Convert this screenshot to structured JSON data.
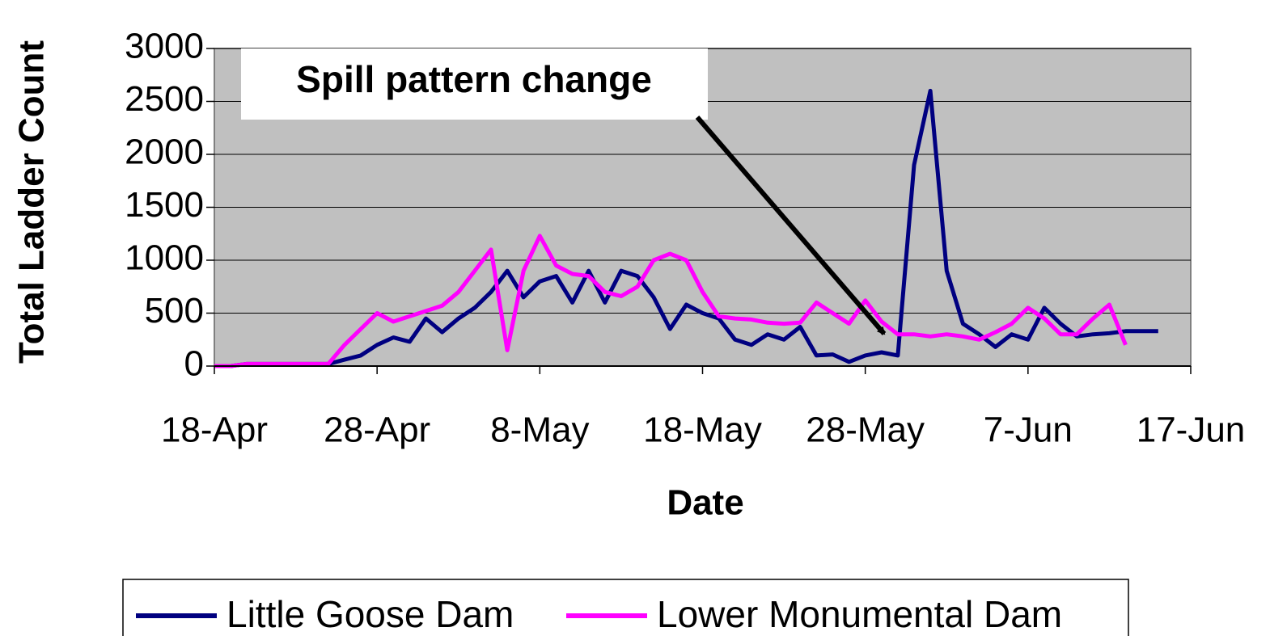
{
  "chart_data": {
    "type": "line",
    "x": [
      "18-Apr",
      "19-Apr",
      "20-Apr",
      "21-Apr",
      "22-Apr",
      "23-Apr",
      "24-Apr",
      "25-Apr",
      "26-Apr",
      "27-Apr",
      "28-Apr",
      "29-Apr",
      "30-Apr",
      "1-May",
      "2-May",
      "3-May",
      "4-May",
      "5-May",
      "6-May",
      "7-May",
      "8-May",
      "9-May",
      "10-May",
      "11-May",
      "12-May",
      "13-May",
      "14-May",
      "15-May",
      "16-May",
      "17-May",
      "18-May",
      "19-May",
      "20-May",
      "21-May",
      "22-May",
      "23-May",
      "24-May",
      "25-May",
      "26-May",
      "27-May",
      "28-May",
      "29-May",
      "30-May",
      "31-May",
      "1-Jun",
      "2-Jun",
      "3-Jun",
      "4-Jun",
      "5-Jun",
      "6-Jun",
      "7-Jun",
      "8-Jun",
      "9-Jun",
      "10-Jun",
      "11-Jun",
      "12-Jun",
      "13-Jun",
      "14-Jun",
      "15-Jun",
      "16-Jun",
      "17-Jun"
    ],
    "series": [
      {
        "name": "Little Goose Dam",
        "color": "#000080",
        "values": [
          0,
          0,
          20,
          20,
          20,
          20,
          20,
          20,
          60,
          100,
          200,
          270,
          230,
          450,
          320,
          450,
          550,
          700,
          900,
          650,
          800,
          850,
          600,
          900,
          600,
          900,
          850,
          650,
          350,
          580,
          500,
          450,
          250,
          200,
          300,
          250,
          370,
          100,
          110,
          40,
          100,
          130,
          100,
          1900,
          2600,
          900,
          400,
          300,
          180,
          300,
          250,
          550,
          400,
          280,
          300,
          310,
          330,
          330,
          330,
          null,
          null
        ]
      },
      {
        "name": "Lower Monumental Dam",
        "color": "#ff00ff",
        "values": [
          0,
          0,
          20,
          20,
          20,
          20,
          20,
          20,
          200,
          350,
          500,
          420,
          470,
          520,
          570,
          700,
          900,
          1100,
          150,
          900,
          1230,
          950,
          870,
          850,
          700,
          660,
          750,
          1000,
          1060,
          1000,
          700,
          470,
          450,
          440,
          410,
          400,
          410,
          600,
          500,
          400,
          620,
          420,
          300,
          300,
          280,
          300,
          280,
          250,
          320,
          400,
          550,
          450,
          300,
          300,
          450,
          580,
          200,
          null,
          null,
          null,
          null
        ]
      }
    ],
    "xticks": [
      "18-Apr",
      "28-Apr",
      "8-May",
      "18-May",
      "28-May",
      "7-Jun",
      "17-Jun"
    ],
    "ylim": [
      0,
      3000
    ],
    "yticks": [
      0,
      500,
      1000,
      1500,
      2000,
      2500,
      3000
    ],
    "xlabel": "Date",
    "ylabel": "Total Ladder Count",
    "annotation": "Spill pattern change",
    "grid": true
  }
}
